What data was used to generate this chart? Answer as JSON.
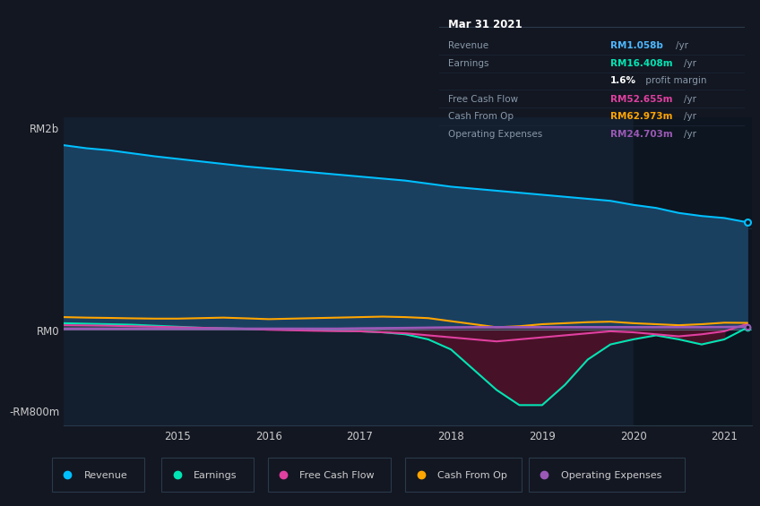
{
  "bg_color": "#131722",
  "plot_bg": "#131e2e",
  "plot_bg_dark": "#0d1520",
  "title_box_bg": "#0a0e1a",
  "x": [
    2013.75,
    2014.0,
    2014.25,
    2014.5,
    2014.75,
    2015.0,
    2015.25,
    2015.5,
    2015.75,
    2016.0,
    2016.25,
    2016.5,
    2016.75,
    2017.0,
    2017.25,
    2017.5,
    2017.75,
    2018.0,
    2018.25,
    2018.5,
    2018.75,
    2019.0,
    2019.25,
    2019.5,
    2019.75,
    2020.0,
    2020.25,
    2020.5,
    2020.75,
    2021.0,
    2021.25
  ],
  "revenue": [
    1820,
    1790,
    1770,
    1740,
    1710,
    1685,
    1660,
    1635,
    1610,
    1590,
    1570,
    1550,
    1530,
    1510,
    1490,
    1470,
    1440,
    1410,
    1390,
    1370,
    1350,
    1330,
    1310,
    1290,
    1270,
    1230,
    1200,
    1150,
    1120,
    1100,
    1058
  ],
  "earnings": [
    60,
    55,
    50,
    45,
    35,
    25,
    15,
    10,
    5,
    0,
    -5,
    -10,
    -15,
    -20,
    -30,
    -50,
    -100,
    -200,
    -400,
    -600,
    -750,
    -750,
    -550,
    -300,
    -150,
    -100,
    -60,
    -100,
    -150,
    -100,
    16
  ],
  "free_cash_flow": [
    40,
    38,
    35,
    30,
    25,
    20,
    15,
    10,
    5,
    -5,
    -10,
    -15,
    -18,
    -20,
    -30,
    -40,
    -60,
    -80,
    -100,
    -120,
    -100,
    -80,
    -60,
    -40,
    -20,
    -30,
    -50,
    -70,
    -50,
    -20,
    52
  ],
  "cash_from_op": [
    120,
    115,
    112,
    108,
    105,
    105,
    110,
    115,
    108,
    100,
    105,
    110,
    115,
    120,
    125,
    120,
    110,
    80,
    50,
    20,
    30,
    50,
    60,
    70,
    75,
    60,
    50,
    40,
    50,
    65,
    63
  ],
  "operating_expenses": [
    5,
    5,
    5,
    5,
    5,
    5,
    5,
    5,
    5,
    5,
    5,
    5,
    5,
    8,
    10,
    12,
    15,
    18,
    20,
    20,
    20,
    20,
    20,
    20,
    20,
    20,
    20,
    20,
    20,
    22,
    25
  ],
  "shaded_start": 2020.0,
  "shaded_end": 2021.3,
  "xlim": [
    2013.75,
    2021.3
  ],
  "ylim_top": 2100,
  "ylim_bottom": -950,
  "ytick_values": [
    2000,
    0,
    -800
  ],
  "ytick_labels": [
    "RM2b",
    "RM0",
    "-RM800m"
  ],
  "xtick_values": [
    2015,
    2016,
    2017,
    2018,
    2019,
    2020,
    2021
  ],
  "colors": {
    "revenue_line": "#00bfff",
    "revenue_fill": "#1a4060",
    "earnings_line": "#00e5b4",
    "earnings_fill_pos": "#1a4a40",
    "earnings_fill_neg": "#4a1228",
    "free_cash_flow": "#e040a0",
    "cash_from_op": "#ffa500",
    "operating_expenses": "#9b59b6"
  },
  "info_box": {
    "date": "Mar 31 2021",
    "rows": [
      {
        "label": "Revenue",
        "value": "RM1.058b",
        "unit": "/yr",
        "value_color": "#4db8ff",
        "label_color": "#8899aa"
      },
      {
        "label": "Earnings",
        "value": "RM16.408m",
        "unit": "/yr",
        "value_color": "#00e5b4",
        "label_color": "#8899aa"
      },
      {
        "label": "",
        "value": "1.6%",
        "unit": " profit margin",
        "value_color": "#ffffff",
        "label_color": ""
      },
      {
        "label": "Free Cash Flow",
        "value": "RM52.655m",
        "unit": "/yr",
        "value_color": "#e040a0",
        "label_color": "#8899aa"
      },
      {
        "label": "Cash From Op",
        "value": "RM62.973m",
        "unit": "/yr",
        "value_color": "#ffa500",
        "label_color": "#8899aa"
      },
      {
        "label": "Operating Expenses",
        "value": "RM24.703m",
        "unit": "/yr",
        "value_color": "#9b59b6",
        "label_color": "#8899aa"
      }
    ]
  },
  "legend": [
    {
      "label": "Revenue",
      "color": "#00bfff"
    },
    {
      "label": "Earnings",
      "color": "#00e5b4"
    },
    {
      "label": "Free Cash Flow",
      "color": "#e040a0"
    },
    {
      "label": "Cash From Op",
      "color": "#ffa500"
    },
    {
      "label": "Operating Expenses",
      "color": "#9b59b6"
    }
  ]
}
